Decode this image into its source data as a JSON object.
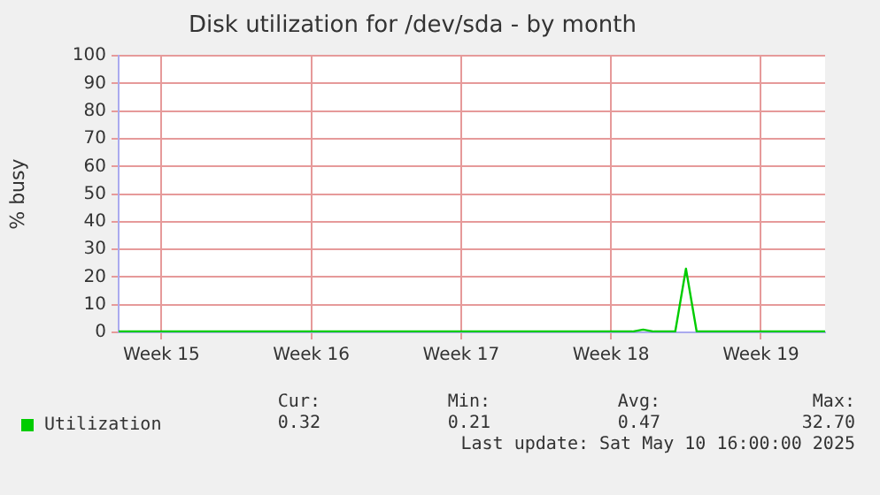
{
  "chart_data": {
    "type": "line",
    "title": "Disk utilization for /dev/sda - by month",
    "ylabel": "% busy",
    "categories": [
      null,
      null,
      null,
      null,
      "Week 15",
      null,
      null,
      null,
      null,
      null,
      null,
      null,
      null,
      null,
      null,
      null,
      null,
      null,
      "Week 16",
      null,
      null,
      null,
      null,
      null,
      null,
      null,
      null,
      null,
      null,
      null,
      null,
      null,
      "Week 17",
      null,
      null,
      null,
      null,
      null,
      null,
      null,
      null,
      null,
      null,
      null,
      null,
      null,
      "Week 18",
      null,
      null,
      null,
      null,
      null,
      null,
      null,
      null,
      null,
      null,
      null,
      null,
      null,
      "Week 19",
      null,
      null,
      null,
      null,
      null,
      null
    ],
    "ylim": [
      0,
      100
    ],
    "yticks": [
      0,
      10,
      20,
      30,
      40,
      50,
      60,
      70,
      80,
      90,
      100
    ],
    "grid": true,
    "legend": "bottom left",
    "marker": "none",
    "line_style": "solid",
    "series": [
      {
        "name": "Utilization",
        "color": "#00cc00",
        "values": [
          0.3,
          0.3,
          0.3,
          0.3,
          0.3,
          0.3,
          0.3,
          0.3,
          0.3,
          0.3,
          0.3,
          0.3,
          0.3,
          0.3,
          0.3,
          0.3,
          0.3,
          0.3,
          0.3,
          0.3,
          0.3,
          0.3,
          0.3,
          0.3,
          0.3,
          0.3,
          0.3,
          0.3,
          0.3,
          0.3,
          0.3,
          0.3,
          0.3,
          0.3,
          0.3,
          0.3,
          0.3,
          0.3,
          0.3,
          0.3,
          0.3,
          0.3,
          0.3,
          0.3,
          0.3,
          0.3,
          0.3,
          0.3,
          0.3,
          1,
          0.3,
          0.3,
          0.3,
          23,
          0.3,
          0.3,
          0.3,
          0.3,
          0.3,
          0.3,
          0.3,
          0.3,
          0.3,
          0.3,
          0.3,
          0.3,
          0.3
        ]
      }
    ],
    "annotations": [
      "Cur:",
      "Min:",
      "Avg:",
      "Max:",
      "0.32",
      "0.21",
      "0.47",
      "32.70",
      "Last update: Sat May 10 16:00:00 2025"
    ]
  }
}
